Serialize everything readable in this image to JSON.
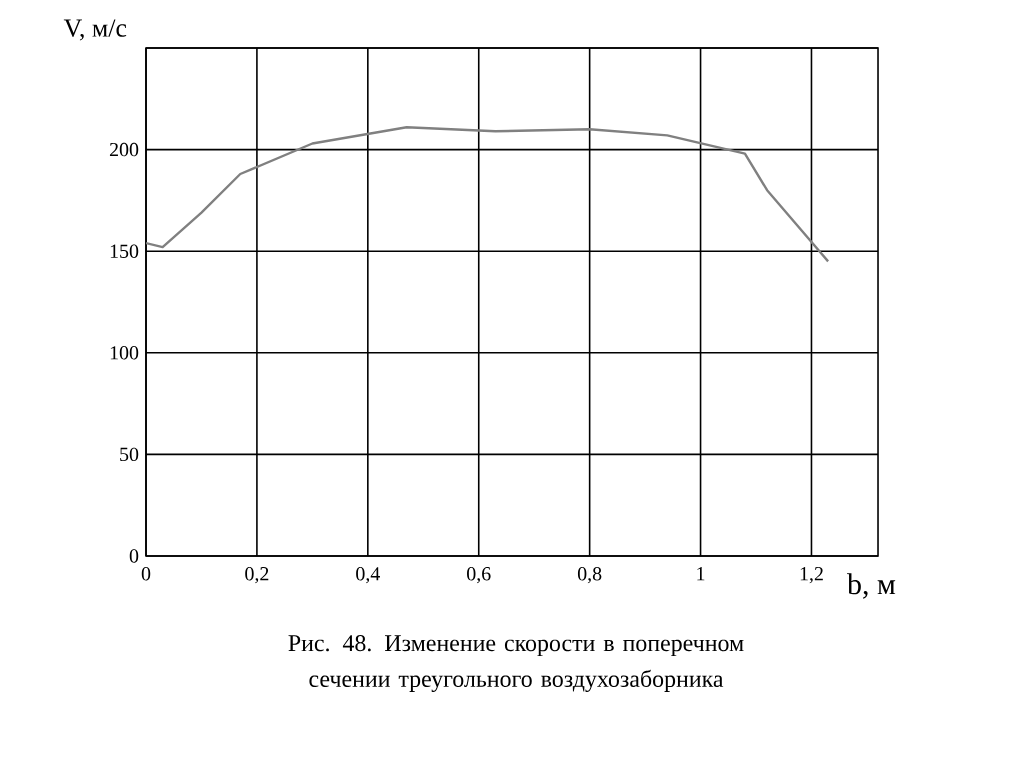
{
  "chart_data": {
    "type": "line",
    "xlabel": "b, м",
    "ylabel": "V, м/с",
    "annotations": [
      "Рис. 48. Изменение скорости в поперечном сечении треугольного воздухозаборника"
    ],
    "x": [
      0,
      0.03,
      0.1,
      0.17,
      0.3,
      0.47,
      0.63,
      0.8,
      0.94,
      1.08,
      1.12,
      1.23
    ],
    "series": [
      {
        "color": "#808080",
        "values": [
          154,
          152,
          169,
          188,
          203,
          211,
          209,
          210,
          207,
          198,
          180,
          145
        ]
      }
    ],
    "xlim": [
      0,
      1.32
    ],
    "xticks": [
      0,
      {
        "value": 0.2,
        "label": "0,2"
      },
      {
        "value": 0.4,
        "label": "0,4"
      },
      {
        "value": 0.6,
        "label": "0,6"
      },
      {
        "value": 0.8,
        "label": "0,8"
      },
      1,
      {
        "value": 1.2,
        "label": "1,2"
      }
    ],
    "ylim": [
      0,
      250
    ],
    "yticks": [
      0,
      50,
      100,
      150,
      200,
      {
        "value": 250,
        "label": null
      }
    ],
    "grid": true,
    "marker": "none",
    "line_style": "solid"
  }
}
